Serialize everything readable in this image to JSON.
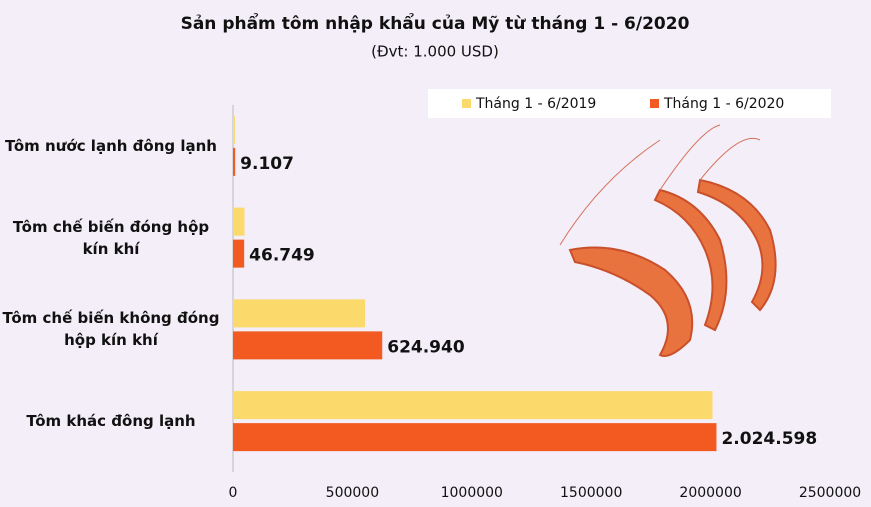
{
  "chart_data": {
    "type": "bar",
    "orientation": "horizontal",
    "title": "Sản phẩm tôm nhập khẩu của Mỹ từ tháng 1 - 6/2020",
    "subtitle": "(Đvt: 1.000 USD)",
    "categories": [
      "Tôm nước lạnh đông lạnh",
      "Tôm chế biến đóng hộp kín khí",
      "Tôm chế biến không đóng hộp kín khí",
      "Tôm khác đông lạnh"
    ],
    "series": [
      {
        "name": "Tháng 1 - 6/2019",
        "color": "#fcd96b",
        "values": [
          8000,
          48000,
          553000,
          2008000
        ]
      },
      {
        "name": "Tháng 1 - 6/2020",
        "color": "#f25a21",
        "values": [
          9107,
          46749,
          624940,
          2024598
        ],
        "value_labels": [
          "9.107",
          "46.749",
          "624.940",
          "2.024.598"
        ]
      }
    ],
    "xlim": [
      0,
      2500000
    ],
    "xticks": [
      0,
      500000,
      1000000,
      1500000,
      2000000,
      2500000
    ],
    "legend": "top-right"
  }
}
